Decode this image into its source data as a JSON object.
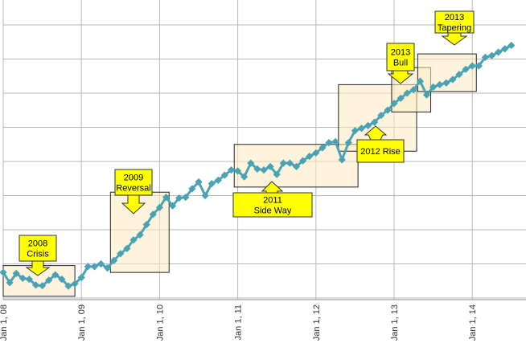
{
  "chart_data": {
    "type": "line",
    "title": "",
    "xlabel": "",
    "ylabel": "",
    "x_tick_labels": [
      "Jan 1, 08",
      "Jan 1, 09",
      "Jan 1, 10",
      "Jan 1, 11",
      "Jan 1, 12",
      "Jan 1, 13",
      "Jan 1, 14"
    ],
    "x_range": [
      "2008-01-01",
      "2014-08-01"
    ],
    "y_range": [
      0,
      9
    ],
    "y_tick_labels_visible": false,
    "grid": true,
    "legend": "none",
    "series": [
      {
        "color": "#4aa3b5",
        "marker": "diamond",
        "points": [
          [
            "2008-01-01",
            0.75
          ],
          [
            "2008-02-01",
            0.45
          ],
          [
            "2008-03-01",
            0.72
          ],
          [
            "2008-04-01",
            0.58
          ],
          [
            "2008-05-01",
            0.55
          ],
          [
            "2008-06-01",
            0.38
          ],
          [
            "2008-07-01",
            0.36
          ],
          [
            "2008-08-01",
            0.52
          ],
          [
            "2008-09-01",
            0.68
          ],
          [
            "2008-10-01",
            0.55
          ],
          [
            "2008-11-01",
            0.35
          ],
          [
            "2008-12-01",
            0.42
          ],
          [
            "2009-01-01",
            0.6
          ],
          [
            "2009-02-01",
            0.92
          ],
          [
            "2009-03-01",
            0.92
          ],
          [
            "2009-04-01",
            1.0
          ],
          [
            "2009-05-01",
            0.88
          ],
          [
            "2009-06-01",
            1.1
          ],
          [
            "2009-07-01",
            1.3
          ],
          [
            "2009-08-01",
            1.45
          ],
          [
            "2009-09-01",
            1.7
          ],
          [
            "2009-10-01",
            1.85
          ],
          [
            "2009-11-01",
            2.15
          ],
          [
            "2009-12-01",
            2.45
          ],
          [
            "2010-01-01",
            2.65
          ],
          [
            "2010-02-01",
            2.95
          ],
          [
            "2010-03-01",
            2.7
          ],
          [
            "2010-04-01",
            2.93
          ],
          [
            "2010-05-01",
            2.95
          ],
          [
            "2010-06-01",
            3.2
          ],
          [
            "2010-07-01",
            3.4
          ],
          [
            "2010-08-01",
            3.0
          ],
          [
            "2010-09-01",
            3.35
          ],
          [
            "2010-10-01",
            3.45
          ],
          [
            "2010-11-01",
            3.6
          ],
          [
            "2010-12-01",
            3.75
          ],
          [
            "2011-01-01",
            3.72
          ],
          [
            "2011-02-01",
            3.55
          ],
          [
            "2011-03-01",
            3.95
          ],
          [
            "2011-04-01",
            3.78
          ],
          [
            "2011-05-01",
            3.75
          ],
          [
            "2011-06-01",
            3.85
          ],
          [
            "2011-07-01",
            3.62
          ],
          [
            "2011-08-01",
            3.95
          ],
          [
            "2011-09-01",
            3.95
          ],
          [
            "2011-10-01",
            3.85
          ],
          [
            "2011-11-01",
            4.02
          ],
          [
            "2011-12-01",
            4.15
          ],
          [
            "2012-01-01",
            4.25
          ],
          [
            "2012-02-01",
            4.4
          ],
          [
            "2012-03-01",
            4.55
          ],
          [
            "2012-04-01",
            4.58
          ],
          [
            "2012-05-01",
            4.05
          ],
          [
            "2012-06-01",
            4.55
          ],
          [
            "2012-07-01",
            4.9
          ],
          [
            "2012-08-01",
            4.97
          ],
          [
            "2012-09-01",
            5.05
          ],
          [
            "2012-10-01",
            5.15
          ],
          [
            "2012-11-01",
            5.35
          ],
          [
            "2012-12-01",
            5.5
          ],
          [
            "2013-01-01",
            5.7
          ],
          [
            "2013-02-01",
            5.85
          ],
          [
            "2013-03-01",
            6.0
          ],
          [
            "2013-04-01",
            6.1
          ],
          [
            "2013-05-01",
            6.35
          ],
          [
            "2013-06-01",
            5.95
          ],
          [
            "2013-07-01",
            6.18
          ],
          [
            "2013-08-01",
            6.25
          ],
          [
            "2013-09-01",
            6.3
          ],
          [
            "2013-10-01",
            6.4
          ],
          [
            "2013-11-01",
            6.55
          ],
          [
            "2013-12-01",
            6.7
          ],
          [
            "2014-01-01",
            6.8
          ],
          [
            "2014-02-01",
            6.8
          ],
          [
            "2014-03-01",
            7.05
          ],
          [
            "2014-04-01",
            7.1
          ],
          [
            "2014-05-01",
            7.2
          ],
          [
            "2014-06-01",
            7.3
          ],
          [
            "2014-07-01",
            7.4
          ]
        ]
      }
    ],
    "annotations": [
      {
        "lines": [
          "2008",
          "Crisis"
        ],
        "range": [
          "2008-01-01",
          "2008-12-01",
          0.05,
          0.95
        ],
        "arrow": "down"
      },
      {
        "lines": [
          "2009",
          "Reversal"
        ],
        "range": [
          "2009-05-15",
          "2010-02-15",
          0.75,
          3.1
        ],
        "arrow": "down"
      },
      {
        "lines": [
          "2011",
          "Side Way"
        ],
        "range": [
          "2010-12-15",
          "2012-07-15",
          3.25,
          4.5
        ],
        "arrow": "up"
      },
      {
        "lines": [
          "2012 Rise"
        ],
        "range": [
          "2012-04-15",
          "2013-04-15",
          4.3,
          6.25
        ],
        "arrow": "up-left"
      },
      {
        "lines": [
          "2013",
          "Bull"
        ],
        "range": [
          "2012-12-20",
          "2013-06-20",
          5.45,
          6.75
        ],
        "arrow": "down"
      },
      {
        "lines": [
          "2013",
          "Tapering"
        ],
        "range": [
          "2013-04-20",
          "2014-01-20",
          6.05,
          7.15
        ],
        "arrow": "down"
      }
    ]
  }
}
